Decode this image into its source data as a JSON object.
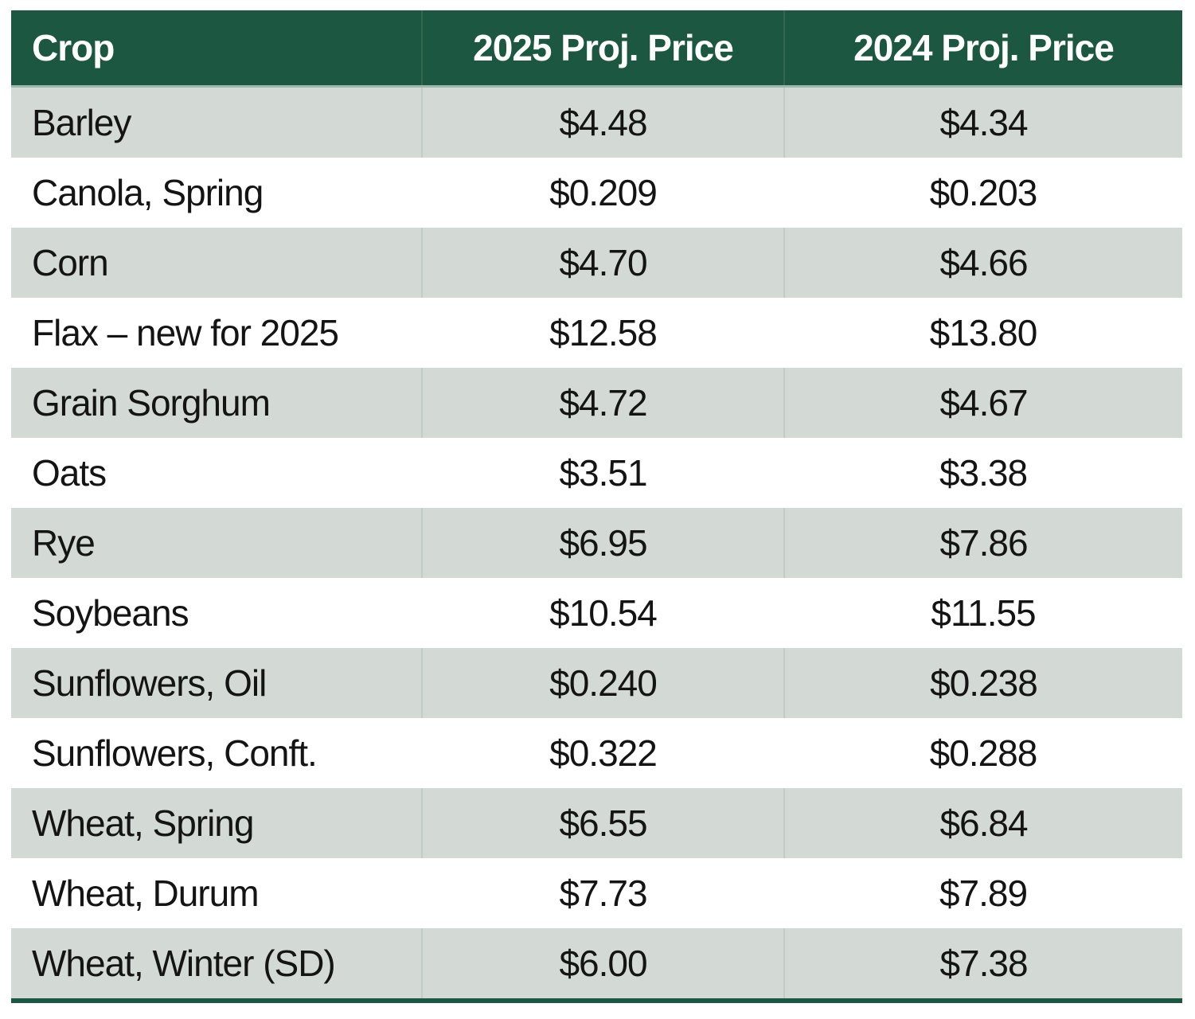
{
  "colors": {
    "header_bg": "#1B5741",
    "header_text": "#FFFFFF",
    "row_shaded_bg": "#D3DAD5",
    "row_plain_bg": "#FFFFFF",
    "cell_text": "#141414",
    "shaded_column_divider": "#C1CCC4",
    "header_column_divider": "#33684F",
    "header_underline": "#A0B8AB",
    "table_bottom_border": "#1B5741"
  },
  "table": {
    "columns": [
      "Crop",
      "2025 Proj. Price",
      "2024 Proj. Price"
    ],
    "rows": [
      {
        "crop": "Barley",
        "price_2025": "$4.48",
        "price_2024": "$4.34"
      },
      {
        "crop": "Canola, Spring",
        "price_2025": "$0.209",
        "price_2024": "$0.203"
      },
      {
        "crop": "Corn",
        "price_2025": "$4.70",
        "price_2024": "$4.66"
      },
      {
        "crop": "Flax – new for 2025",
        "price_2025": "$12.58",
        "price_2024": "$13.80"
      },
      {
        "crop": "Grain Sorghum",
        "price_2025": "$4.72",
        "price_2024": "$4.67"
      },
      {
        "crop": "Oats",
        "price_2025": "$3.51",
        "price_2024": "$3.38"
      },
      {
        "crop": "Rye",
        "price_2025": "$6.95",
        "price_2024": "$7.86"
      },
      {
        "crop": "Soybeans",
        "price_2025": "$10.54",
        "price_2024": "$11.55"
      },
      {
        "crop": "Sunflowers, Oil",
        "price_2025": "$0.240",
        "price_2024": "$0.238"
      },
      {
        "crop": "Sunflowers, Conft.",
        "price_2025": "$0.322",
        "price_2024": "$0.288"
      },
      {
        "crop": "Wheat, Spring",
        "price_2025": "$6.55",
        "price_2024": "$6.84"
      },
      {
        "crop": "Wheat, Durum",
        "price_2025": "$7.73",
        "price_2024": "$7.89"
      },
      {
        "crop": "Wheat, Winter (SD)",
        "price_2025": "$6.00",
        "price_2024": "$7.38"
      }
    ]
  },
  "chart_data": {
    "type": "table",
    "columns": [
      "Crop",
      "2025 Proj. Price",
      "2024 Proj. Price"
    ],
    "rows": [
      [
        "Barley",
        4.48,
        4.34
      ],
      [
        "Canola, Spring",
        0.209,
        0.203
      ],
      [
        "Corn",
        4.7,
        4.66
      ],
      [
        "Flax – new for 2025",
        12.58,
        13.8
      ],
      [
        "Grain Sorghum",
        4.72,
        4.67
      ],
      [
        "Oats",
        3.51,
        3.38
      ],
      [
        "Rye",
        6.95,
        7.86
      ],
      [
        "Soybeans",
        10.54,
        11.55
      ],
      [
        "Sunflowers, Oil",
        0.24,
        0.238
      ],
      [
        "Sunflowers, Conft.",
        0.322,
        0.288
      ],
      [
        "Wheat, Spring",
        6.55,
        6.84
      ],
      [
        "Wheat, Durum",
        7.73,
        7.89
      ],
      [
        "Wheat, Winter (SD)",
        6.0,
        7.38
      ]
    ]
  }
}
